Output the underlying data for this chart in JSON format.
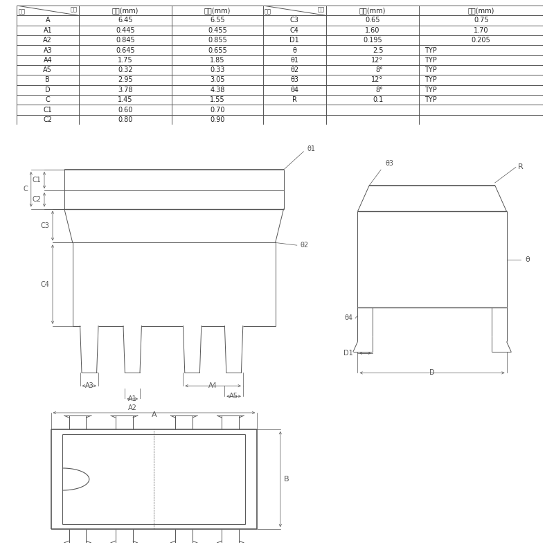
{
  "table_rows": [
    [
      "A",
      "6.45",
      "6.55",
      "C3",
      "0.65",
      "0.75"
    ],
    [
      "A1",
      "0.445",
      "0.455",
      "C4",
      "1.60",
      "1.70"
    ],
    [
      "A2",
      "0.845",
      "0.855",
      "D1",
      "0.195",
      "0.205"
    ],
    [
      "A3",
      "0.645",
      "0.655",
      "θ",
      "2.5",
      "TYP"
    ],
    [
      "A4",
      "1.75",
      "1.85",
      "θ1",
      "12°",
      "TYP"
    ],
    [
      "A5",
      "0.32",
      "0.33",
      "θ2",
      "8°",
      "TYP"
    ],
    [
      "B",
      "2.95",
      "3.05",
      "θ3",
      "12°",
      "TYP"
    ],
    [
      "D",
      "3.78",
      "4.38",
      "θ4",
      "8°",
      "TYP"
    ],
    [
      "C",
      "1.45",
      "1.55",
      "R",
      "0.1",
      "TYP"
    ],
    [
      "C1",
      "0.60",
      "0.70",
      "",
      "",
      ""
    ],
    [
      "C2",
      "0.80",
      "0.90",
      "",
      "",
      ""
    ]
  ],
  "bg_color": "#ffffff",
  "line_color": "#555555",
  "text_color": "#222222",
  "dim_color": "#555555"
}
